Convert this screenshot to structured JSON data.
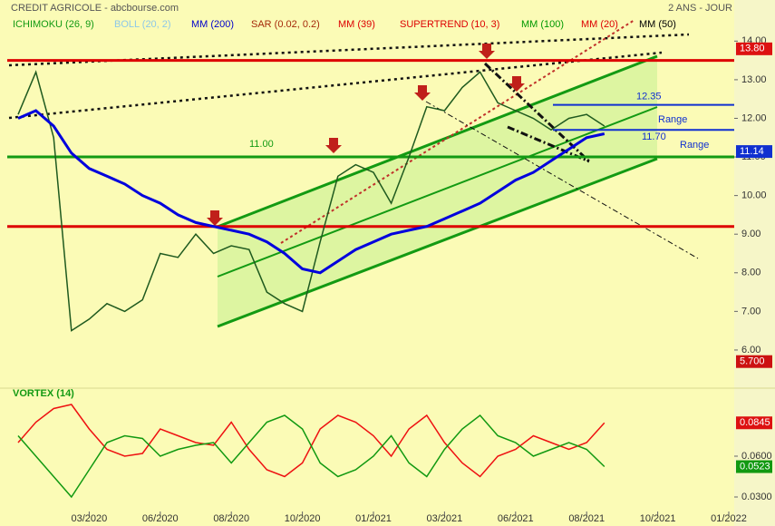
{
  "chart_data": [
    {
      "type": "line",
      "title": "CREDIT AGRICOLE - abcbourse.com",
      "subtitle": "2 ANS - JOUR",
      "legend": [
        {
          "label": "ICHIMOKU (26, 9)",
          "color": "#139a13"
        },
        {
          "label": "BOLL (20, 2)",
          "color": "#8ec8e8"
        },
        {
          "label": "MM (200)",
          "color": "#0000cc"
        },
        {
          "label": "SAR (0.02, 0.2)",
          "color": "#a52a0a"
        },
        {
          "label": "MM (39)",
          "color": "#dd0000"
        },
        {
          "label": "SUPERTREND (10, 3)",
          "color": "#dd0000"
        },
        {
          "label": "MM (100)",
          "color": "#009900"
        },
        {
          "label": "MM (20)",
          "color": "#dd0000"
        },
        {
          "label": "MM (50)",
          "color": "#000000"
        }
      ],
      "categories": [
        null,
        null,
        null,
        null,
        "03/2020",
        null,
        null,
        null,
        "06/2020",
        null,
        null,
        null,
        "08/2020",
        null,
        null,
        null,
        "10/2020",
        null,
        null,
        null,
        "01/2021",
        null,
        null,
        null,
        "03/2021",
        null,
        null,
        null,
        "06/2021",
        null,
        null,
        null,
        "08/2021",
        null,
        null,
        null,
        "10/2021",
        null,
        null,
        null,
        "01/2022"
      ],
      "series": [
        {
          "color": "#1f5a1f",
          "values": [
            12.1,
            13.2,
            11.5,
            6.5,
            6.8,
            7.2,
            7.0,
            7.3,
            8.5,
            8.4,
            9.0,
            8.5,
            8.7,
            8.6,
            7.5,
            7.2,
            7.0,
            8.8,
            10.5,
            10.8,
            10.6,
            9.8,
            11.0,
            12.3,
            12.2,
            12.8,
            13.2,
            12.4,
            12.2,
            12.0,
            11.7,
            12.0,
            12.1,
            11.8,
            null,
            null,
            null,
            null,
            null,
            null,
            null
          ]
        },
        {
          "name": "MM (200)",
          "color": "#0000dd",
          "values": [
            12.0,
            12.2,
            11.8,
            11.1,
            10.7,
            10.5,
            10.3,
            10.0,
            9.8,
            9.5,
            9.3,
            9.2,
            9.1,
            9.0,
            8.8,
            8.5,
            8.1,
            8.0,
            8.3,
            8.6,
            8.8,
            9.0,
            9.1,
            9.2,
            9.4,
            9.6,
            9.8,
            10.1,
            10.4,
            10.6,
            10.9,
            11.2,
            11.5,
            11.6,
            null,
            null,
            null,
            null,
            null,
            null,
            null
          ]
        }
      ],
      "ylim": [
        5.2,
        14.9
      ],
      "yticks": [
        {
          "value": 6,
          "label": "6.00"
        },
        {
          "value": 7,
          "label": "7.00"
        },
        {
          "value": 8,
          "label": "8.00"
        },
        {
          "value": 9,
          "label": "9.00"
        },
        {
          "value": 10,
          "label": "10.00"
        },
        {
          "value": 11,
          "label": "11.00"
        },
        {
          "value": 12,
          "label": "12.00"
        },
        {
          "value": 13,
          "label": "13.00"
        },
        {
          "value": 14,
          "label": "14.00"
        }
      ],
      "levels": [
        {
          "value": 13.5,
          "color": "#dd0000"
        },
        {
          "value": 9.2,
          "color": "#dd0000"
        },
        {
          "value": 11,
          "label": "11.00",
          "color": "#139a13"
        },
        {
          "value": 12.35,
          "label": "12.35",
          "color": "#1030d0"
        },
        {
          "value": 11.7,
          "label": "11.70",
          "color": "#1030d0"
        }
      ],
      "annotations": [
        "Range",
        "Range"
      ],
      "badges": [
        {
          "value": 13.8,
          "label": "13.80",
          "color": "#dd1111"
        },
        {
          "value": 11.14,
          "label": "11.14",
          "color": "#1030d0"
        },
        {
          "value": 5.7,
          "label": "5.700",
          "color": "#cc1111"
        }
      ]
    },
    {
      "type": "line",
      "title": "VORTEX (14)",
      "series": [
        {
          "color": "#ee1111",
          "values": [
            0.07,
            0.085,
            0.095,
            0.098,
            0.08,
            0.065,
            0.06,
            0.062,
            0.08,
            0.075,
            0.07,
            0.068,
            0.085,
            0.065,
            0.05,
            0.045,
            0.055,
            0.08,
            0.09,
            0.085,
            0.075,
            0.06,
            0.08,
            0.09,
            0.07,
            0.055,
            0.045,
            0.06,
            0.065,
            0.075,
            0.07,
            0.065,
            0.07,
            0.0845,
            null,
            null,
            null,
            null,
            null,
            null,
            null
          ]
        },
        {
          "color": "#119911",
          "values": [
            0.075,
            0.06,
            0.045,
            0.03,
            0.05,
            0.07,
            0.075,
            0.073,
            0.06,
            0.065,
            0.068,
            0.07,
            0.055,
            0.07,
            0.085,
            0.09,
            0.08,
            0.055,
            0.045,
            0.05,
            0.06,
            0.075,
            0.055,
            0.045,
            0.065,
            0.08,
            0.09,
            0.075,
            0.07,
            0.06,
            0.065,
            0.07,
            0.065,
            0.0523,
            null,
            null,
            null,
            null,
            null,
            null,
            null
          ]
        }
      ],
      "ylim": [
        0.018,
        0.102
      ],
      "yticks": [
        {
          "value": 0.03,
          "label": "0.0300"
        },
        {
          "value": 0.06,
          "label": "0.0600"
        }
      ],
      "badges": [
        {
          "value": 0.0845,
          "label": "0.0845",
          "color": "#dd1111"
        },
        {
          "value": 0.0523,
          "label": "0.0523",
          "color": "#119911"
        }
      ]
    }
  ]
}
